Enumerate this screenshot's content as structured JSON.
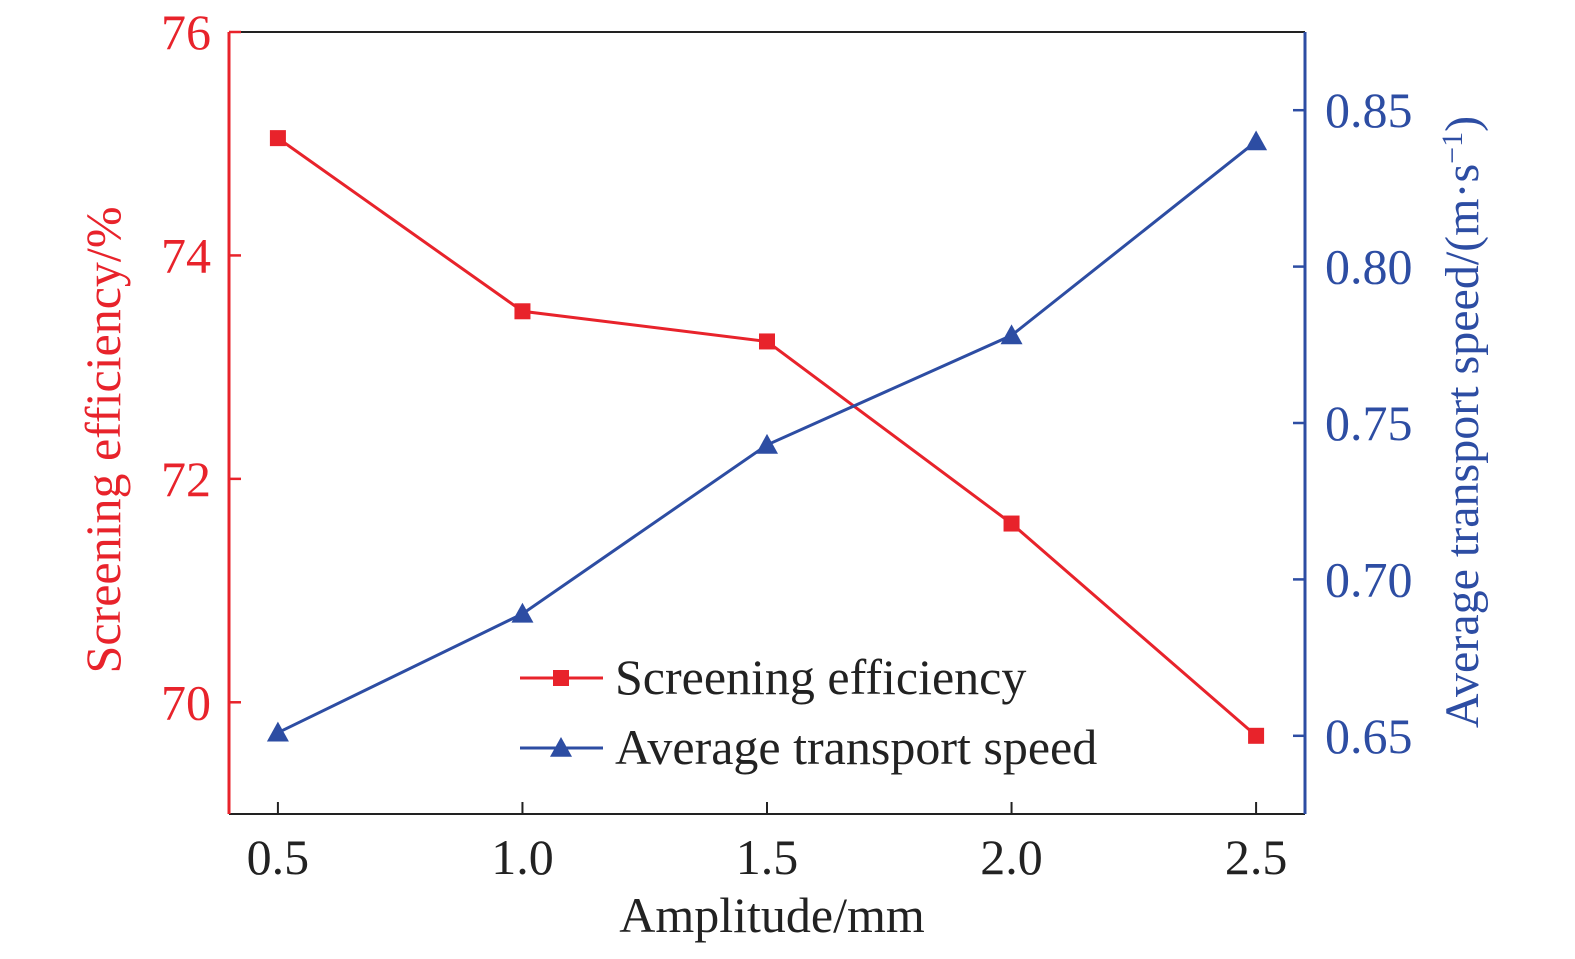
{
  "chart_data": {
    "type": "line",
    "x": [
      0.5,
      1.0,
      1.5,
      2.0,
      2.5
    ],
    "xlabel": "Amplitude/mm",
    "xticks": [
      "0.5",
      "1.0",
      "1.5",
      "2.0",
      "2.5"
    ],
    "xlim": [
      0.4,
      2.6
    ],
    "y_left": {
      "label": "Screening efficiency/%",
      "lim": [
        69.0,
        76.0
      ],
      "ticks": [
        "70",
        "72",
        "74",
        "76"
      ],
      "color": "#e8232b"
    },
    "y_right": {
      "label_main": "Average transport speed/(m·s",
      "label_sup": "−1",
      "label_end": ")",
      "lim": [
        0.625,
        0.875
      ],
      "ticks": [
        "0.65",
        "0.70",
        "0.75",
        "0.80",
        "0.85"
      ],
      "color": "#2d4da3"
    },
    "series": [
      {
        "name": "Screening efficiency",
        "axis": "left",
        "marker": "square",
        "color": "#e8232b",
        "values": [
          75.05,
          73.5,
          73.23,
          71.6,
          69.7
        ]
      },
      {
        "name": "Average transport speed",
        "axis": "right",
        "marker": "triangle",
        "color": "#2d4da3",
        "values": [
          0.651,
          0.689,
          0.743,
          0.778,
          0.84
        ]
      }
    ],
    "legend_position": "bottom-center",
    "grid": false
  }
}
